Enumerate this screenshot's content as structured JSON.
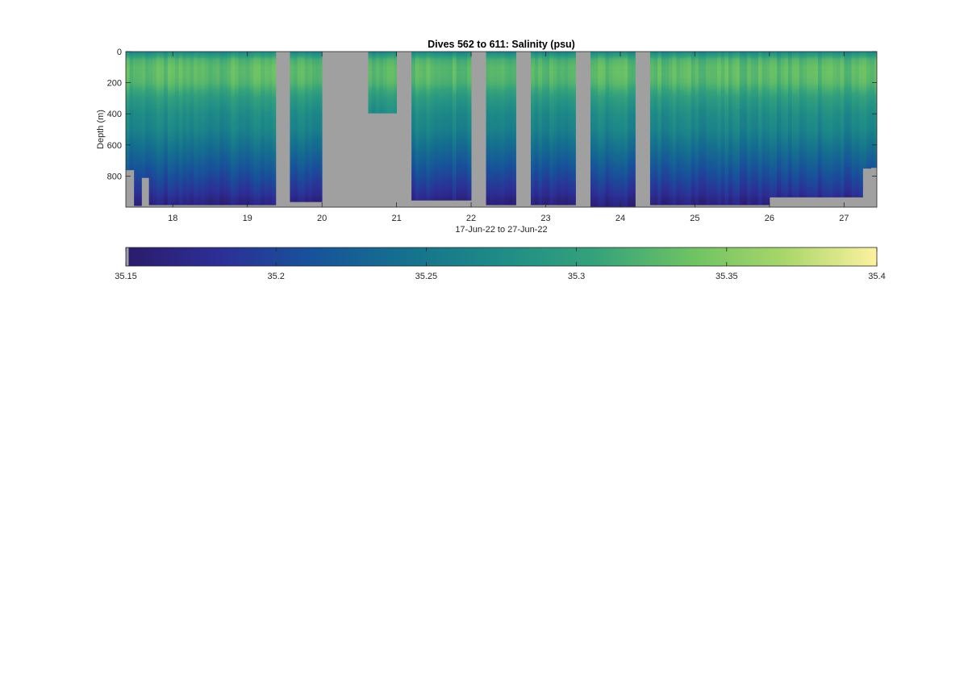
{
  "chart_data": {
    "type": "heatmap",
    "title": "Dives 562 to 611: Salinity (psu)",
    "xlabel": "17-Jun-22 to 27-Jun-22",
    "ylabel": "Depth (m)",
    "x_unit": "day of June 2022",
    "xlim": [
      17.37,
      27.44
    ],
    "ylim": [
      0,
      1000
    ],
    "y_reversed": true,
    "x_ticks": [
      18,
      19,
      20,
      21,
      22,
      23,
      24,
      25,
      26,
      27
    ],
    "x_tick_labels": [
      "18",
      "19",
      "20",
      "21",
      "22",
      "23",
      "24",
      "25",
      "26",
      "27"
    ],
    "y_ticks": [
      0,
      200,
      400,
      600,
      800
    ],
    "y_tick_labels": [
      "0",
      "200",
      "400",
      "600",
      "800"
    ],
    "background_color": "#a0a0a0",
    "colormap": "parula-like (dark blue to yellow)",
    "colormap_stops": [
      "#2b1b6b",
      "#2c2f96",
      "#17539a",
      "#15718e",
      "#1f8c87",
      "#35a27b",
      "#6cc264",
      "#a8d66a",
      "#fdf2a0"
    ],
    "colorbar": {
      "range": [
        35.15,
        35.4
      ],
      "ticks": [
        35.15,
        35.2,
        35.25,
        35.3,
        35.35,
        35.4
      ],
      "tick_labels": [
        "35.15",
        "35.2",
        "35.25",
        "35.3",
        "35.35",
        "35.4"
      ],
      "orientation": "horizontal"
    },
    "salinity_profile": {
      "depth_m": [
        0,
        20,
        50,
        100,
        150,
        200,
        250,
        300,
        350,
        400,
        450,
        500,
        550,
        600,
        650,
        700,
        750,
        800,
        850,
        900,
        950,
        1000
      ],
      "salinity_psu": [
        35.27,
        35.29,
        35.32,
        35.33,
        35.33,
        35.325,
        35.31,
        35.295,
        35.285,
        35.275,
        35.27,
        35.265,
        35.255,
        35.245,
        35.235,
        35.225,
        35.215,
        35.205,
        35.195,
        35.185,
        35.17,
        35.16
      ]
    },
    "segments": [
      {
        "start": 17.37,
        "end": 17.48,
        "max_depth": 760
      },
      {
        "start": 17.48,
        "end": 17.58,
        "max_depth": 990
      },
      {
        "start": 17.58,
        "end": 17.68,
        "max_depth": 810
      },
      {
        "start": 17.68,
        "end": 19.38,
        "max_depth": 985
      },
      {
        "start": 19.57,
        "end": 20.0,
        "max_depth": 965
      },
      {
        "start": 21.2,
        "end": 22.0,
        "max_depth": 955
      },
      {
        "start": 22.2,
        "end": 22.6,
        "max_depth": 985
      },
      {
        "start": 22.8,
        "end": 23.4,
        "max_depth": 985
      },
      {
        "start": 23.6,
        "end": 24.2,
        "max_depth": 995
      },
      {
        "start": 24.4,
        "end": 26.0,
        "max_depth": 985
      },
      {
        "start": 26.0,
        "end": 27.25,
        "max_depth": 935
      },
      {
        "start": 27.25,
        "end": 27.36,
        "max_depth": 750
      },
      {
        "start": 27.36,
        "end": 27.44,
        "max_depth": 745
      }
    ],
    "shallow_dives": [
      {
        "start": 20.62,
        "end": 21.0,
        "max_depth": 395
      }
    ],
    "gaps": [
      {
        "start": 19.38,
        "end": 19.57
      },
      {
        "start": 20.0,
        "end": 20.62
      },
      {
        "start": 21.0,
        "end": 21.2
      },
      {
        "start": 22.0,
        "end": 22.2
      },
      {
        "start": 22.6,
        "end": 22.8
      },
      {
        "start": 23.4,
        "end": 23.6
      },
      {
        "start": 24.2,
        "end": 24.4
      }
    ]
  }
}
